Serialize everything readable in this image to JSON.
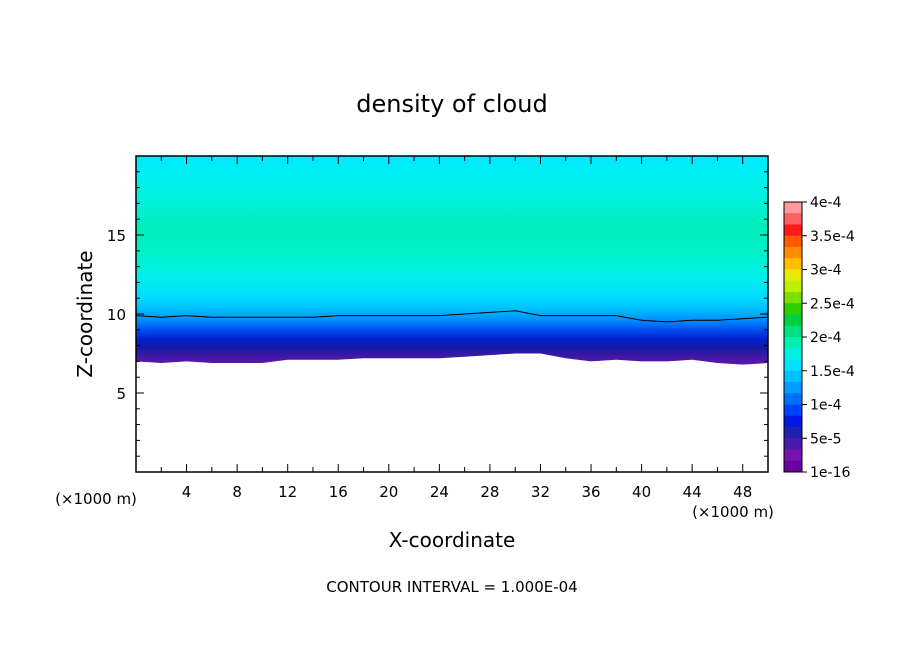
{
  "chart_data": {
    "type": "contour",
    "title": "density of cloud",
    "xlabel": "X-coordinate",
    "ylabel": "Z-coordinate",
    "x_unit_left": "(×1000 m)",
    "x_unit_right": "(×1000 m)",
    "xlim": [
      0,
      50
    ],
    "ylim": [
      0,
      20
    ],
    "x_ticks": [
      "4",
      "8",
      "12",
      "16",
      "20",
      "24",
      "28",
      "32",
      "36",
      "40",
      "44",
      "48"
    ],
    "y_ticks": [
      "5",
      "10",
      "15"
    ],
    "footer": "CONTOUR INTERVAL = 1.000E-04",
    "colorbar": {
      "labels": [
        "4e-4",
        "3.5e-4",
        "3e-4",
        "2.5e-4",
        "2e-4",
        "1.5e-4",
        "1e-4",
        "5e-5",
        "1e-16"
      ],
      "colors": [
        "#ff9a9a",
        "#ff6060",
        "#ff1a1a",
        "#ff5a00",
        "#ff8c00",
        "#ffbf00",
        "#e8e800",
        "#c0f000",
        "#7ae000",
        "#2ad000",
        "#00d040",
        "#00e080",
        "#00f0b0",
        "#00f0e0",
        "#00e0ff",
        "#00c0ff",
        "#009cff",
        "#0070ff",
        "#0040ff",
        "#0018e0",
        "#2020b0",
        "#4a1ab0",
        "#7a10b0",
        "#6a00a0"
      ]
    },
    "cloud_base_profile": {
      "x": [
        0,
        2,
        4,
        6,
        8,
        10,
        12,
        14,
        16,
        18,
        20,
        22,
        24,
        26,
        28,
        30,
        32,
        34,
        36,
        38,
        40,
        42,
        44,
        46,
        48,
        50
      ],
      "z": [
        7.0,
        6.9,
        7.0,
        6.9,
        6.9,
        6.9,
        7.1,
        7.1,
        7.1,
        7.2,
        7.2,
        7.2,
        7.2,
        7.3,
        7.4,
        7.5,
        7.5,
        7.2,
        7.0,
        7.1,
        7.0,
        7.0,
        7.1,
        6.9,
        6.8,
        6.9
      ]
    },
    "contour_1e-4": {
      "x": [
        0,
        2,
        4,
        6,
        8,
        10,
        12,
        14,
        16,
        18,
        20,
        22,
        24,
        26,
        28,
        30,
        32,
        34,
        36,
        38,
        40,
        42,
        44,
        46,
        48,
        50
      ],
      "z": [
        9.9,
        9.8,
        9.9,
        9.8,
        9.8,
        9.8,
        9.8,
        9.8,
        9.9,
        9.9,
        9.9,
        9.9,
        9.9,
        10.0,
        10.1,
        10.2,
        9.9,
        9.9,
        9.9,
        9.9,
        9.6,
        9.5,
        9.6,
        9.6,
        9.7,
        9.8
      ]
    }
  }
}
